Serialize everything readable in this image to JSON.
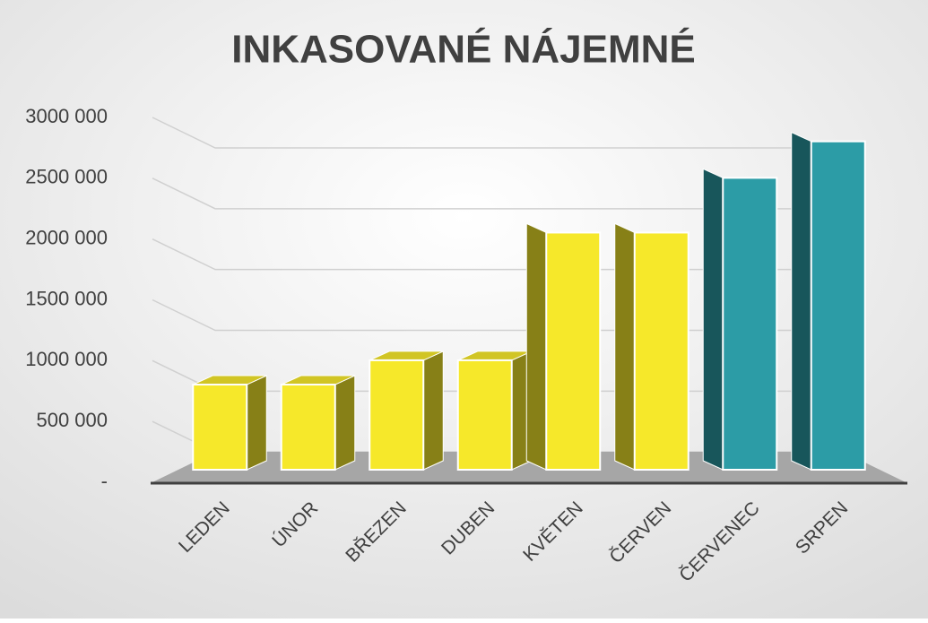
{
  "chart_data": {
    "type": "bar3d",
    "title": "INKASOVANÉ NÁJEMNÉ",
    "categories": [
      "LEDEN",
      "ÚNOR",
      "BŘEZEN",
      "DUBEN",
      "KVĚTEN",
      "ČERVEN",
      "ČERVENEC",
      "SRPEN"
    ],
    "values": [
      700000,
      700000,
      900000,
      900000,
      1950000,
      1950000,
      2400000,
      2700000
    ],
    "colors": [
      "#f6e82a",
      "#f6e82a",
      "#f6e82a",
      "#f6e82a",
      "#f6e82a",
      "#f6e82a",
      "#2c9ca6",
      "#2c9ca6"
    ],
    "ylim": [
      0,
      3000000
    ],
    "yticks": [
      {
        "value": 0,
        "label": "-"
      },
      {
        "value": 500000,
        "label": "500 000"
      },
      {
        "value": 1000000,
        "label": "1000 000"
      },
      {
        "value": 1500000,
        "label": "1500 000"
      },
      {
        "value": 2000000,
        "label": "2000 000"
      },
      {
        "value": 2500000,
        "label": "2500 000"
      },
      {
        "value": 3000000,
        "label": "3000 000"
      }
    ],
    "grid": true
  }
}
